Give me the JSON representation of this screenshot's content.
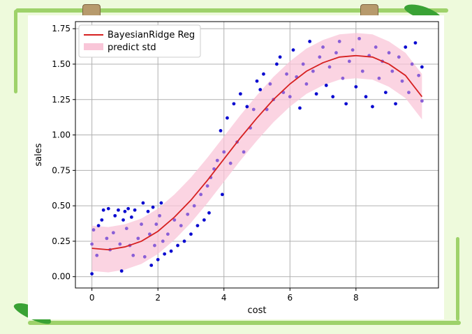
{
  "chart_data": {
    "type": "scatter",
    "xlabel": "cost",
    "ylabel": "sales",
    "xlim": [
      -0.5,
      10.5
    ],
    "ylim": [
      -0.08,
      1.8
    ],
    "xticks": [
      "0",
      "2",
      "4",
      "6",
      "8"
    ],
    "yticks": [
      "0.00",
      "0.25",
      "0.50",
      "0.75",
      "1.00",
      "1.25",
      "1.50",
      "1.75"
    ],
    "grid": true,
    "legend_position": "top-left",
    "legend": [
      "BayesianRidge Reg",
      "predict std"
    ],
    "colors": {
      "line": "#d62020",
      "band": "#f9c6d8",
      "points": "#0a0ad0",
      "overlap_points": "#8a5fd6",
      "frame": "#9ed26a"
    },
    "regression_curve": {
      "name": "BayesianRidge Reg",
      "x": [
        0,
        0.5,
        1,
        1.5,
        2,
        2.5,
        3,
        3.5,
        4,
        4.5,
        5,
        5.5,
        6,
        6.5,
        7,
        7.5,
        8,
        8.5,
        9,
        9.5,
        10
      ],
      "y": [
        0.2,
        0.19,
        0.21,
        0.25,
        0.32,
        0.42,
        0.54,
        0.68,
        0.83,
        0.98,
        1.12,
        1.25,
        1.36,
        1.45,
        1.51,
        1.55,
        1.56,
        1.55,
        1.5,
        1.42,
        1.27
      ]
    },
    "predict_std": {
      "name": "predict std",
      "width": 0.16
    },
    "points": [
      {
        "x": 0.0,
        "y": 0.02
      },
      {
        "x": 0.0,
        "y": 0.23
      },
      {
        "x": 0.05,
        "y": 0.33
      },
      {
        "x": 0.15,
        "y": 0.15
      },
      {
        "x": 0.2,
        "y": 0.36
      },
      {
        "x": 0.3,
        "y": 0.4
      },
      {
        "x": 0.35,
        "y": 0.47
      },
      {
        "x": 0.45,
        "y": 0.27
      },
      {
        "x": 0.5,
        "y": 0.48
      },
      {
        "x": 0.55,
        "y": 0.19
      },
      {
        "x": 0.65,
        "y": 0.31
      },
      {
        "x": 0.7,
        "y": 0.43
      },
      {
        "x": 0.8,
        "y": 0.47
      },
      {
        "x": 0.85,
        "y": 0.23
      },
      {
        "x": 0.9,
        "y": 0.04
      },
      {
        "x": 0.95,
        "y": 0.4
      },
      {
        "x": 1.0,
        "y": 0.46
      },
      {
        "x": 1.05,
        "y": 0.34
      },
      {
        "x": 1.1,
        "y": 0.48
      },
      {
        "x": 1.15,
        "y": 0.22
      },
      {
        "x": 1.2,
        "y": 0.42
      },
      {
        "x": 1.25,
        "y": 0.15
      },
      {
        "x": 1.3,
        "y": 0.47
      },
      {
        "x": 1.4,
        "y": 0.27
      },
      {
        "x": 1.5,
        "y": 0.37
      },
      {
        "x": 1.55,
        "y": 0.52
      },
      {
        "x": 1.6,
        "y": 0.14
      },
      {
        "x": 1.7,
        "y": 0.46
      },
      {
        "x": 1.75,
        "y": 0.3
      },
      {
        "x": 1.8,
        "y": 0.08
      },
      {
        "x": 1.85,
        "y": 0.49
      },
      {
        "x": 1.9,
        "y": 0.22
      },
      {
        "x": 1.95,
        "y": 0.37
      },
      {
        "x": 2.0,
        "y": 0.12
      },
      {
        "x": 2.05,
        "y": 0.43
      },
      {
        "x": 2.1,
        "y": 0.52
      },
      {
        "x": 2.15,
        "y": 0.25
      },
      {
        "x": 2.2,
        "y": 0.16
      },
      {
        "x": 2.3,
        "y": 0.3
      },
      {
        "x": 2.4,
        "y": 0.18
      },
      {
        "x": 2.5,
        "y": 0.4
      },
      {
        "x": 2.6,
        "y": 0.22
      },
      {
        "x": 2.7,
        "y": 0.36
      },
      {
        "x": 2.8,
        "y": 0.25
      },
      {
        "x": 2.9,
        "y": 0.44
      },
      {
        "x": 3.0,
        "y": 0.3
      },
      {
        "x": 3.1,
        "y": 0.5
      },
      {
        "x": 3.2,
        "y": 0.36
      },
      {
        "x": 3.3,
        "y": 0.58
      },
      {
        "x": 3.4,
        "y": 0.4
      },
      {
        "x": 3.5,
        "y": 0.64
      },
      {
        "x": 3.55,
        "y": 0.45
      },
      {
        "x": 3.6,
        "y": 0.7
      },
      {
        "x": 3.7,
        "y": 0.76
      },
      {
        "x": 3.8,
        "y": 0.82
      },
      {
        "x": 3.9,
        "y": 1.03
      },
      {
        "x": 3.95,
        "y": 0.58
      },
      {
        "x": 4.0,
        "y": 0.88
      },
      {
        "x": 4.1,
        "y": 1.12
      },
      {
        "x": 4.2,
        "y": 0.8
      },
      {
        "x": 4.3,
        "y": 1.22
      },
      {
        "x": 4.4,
        "y": 0.95
      },
      {
        "x": 4.5,
        "y": 1.29
      },
      {
        "x": 4.6,
        "y": 0.88
      },
      {
        "x": 4.7,
        "y": 1.2
      },
      {
        "x": 4.8,
        "y": 1.05
      },
      {
        "x": 4.9,
        "y": 1.18
      },
      {
        "x": 5.0,
        "y": 1.38
      },
      {
        "x": 5.1,
        "y": 1.32
      },
      {
        "x": 5.2,
        "y": 1.43
      },
      {
        "x": 5.3,
        "y": 1.18
      },
      {
        "x": 5.4,
        "y": 1.36
      },
      {
        "x": 5.5,
        "y": 1.25
      },
      {
        "x": 5.6,
        "y": 1.5
      },
      {
        "x": 5.7,
        "y": 1.55
      },
      {
        "x": 5.8,
        "y": 1.3
      },
      {
        "x": 5.9,
        "y": 1.43
      },
      {
        "x": 6.0,
        "y": 1.27
      },
      {
        "x": 6.1,
        "y": 1.6
      },
      {
        "x": 6.2,
        "y": 1.41
      },
      {
        "x": 6.3,
        "y": 1.19
      },
      {
        "x": 6.4,
        "y": 1.5
      },
      {
        "x": 6.5,
        "y": 1.36
      },
      {
        "x": 6.6,
        "y": 1.66
      },
      {
        "x": 6.7,
        "y": 1.45
      },
      {
        "x": 6.8,
        "y": 1.29
      },
      {
        "x": 6.9,
        "y": 1.55
      },
      {
        "x": 7.0,
        "y": 1.62
      },
      {
        "x": 7.1,
        "y": 1.35
      },
      {
        "x": 7.2,
        "y": 1.48
      },
      {
        "x": 7.3,
        "y": 1.27
      },
      {
        "x": 7.4,
        "y": 1.58
      },
      {
        "x": 7.5,
        "y": 1.66
      },
      {
        "x": 7.6,
        "y": 1.4
      },
      {
        "x": 7.7,
        "y": 1.22
      },
      {
        "x": 7.8,
        "y": 1.52
      },
      {
        "x": 7.9,
        "y": 1.6
      },
      {
        "x": 8.0,
        "y": 1.34
      },
      {
        "x": 8.1,
        "y": 1.68
      },
      {
        "x": 8.2,
        "y": 1.45
      },
      {
        "x": 8.3,
        "y": 1.27
      },
      {
        "x": 8.4,
        "y": 1.56
      },
      {
        "x": 8.5,
        "y": 1.2
      },
      {
        "x": 8.6,
        "y": 1.62
      },
      {
        "x": 8.7,
        "y": 1.4
      },
      {
        "x": 8.8,
        "y": 1.52
      },
      {
        "x": 8.9,
        "y": 1.3
      },
      {
        "x": 9.0,
        "y": 1.58
      },
      {
        "x": 9.1,
        "y": 1.45
      },
      {
        "x": 9.2,
        "y": 1.22
      },
      {
        "x": 9.3,
        "y": 1.55
      },
      {
        "x": 9.4,
        "y": 1.38
      },
      {
        "x": 9.5,
        "y": 1.62
      },
      {
        "x": 9.6,
        "y": 1.3
      },
      {
        "x": 9.7,
        "y": 1.5
      },
      {
        "x": 9.8,
        "y": 1.65
      },
      {
        "x": 9.9,
        "y": 1.42
      },
      {
        "x": 10.0,
        "y": 1.24
      },
      {
        "x": 10.0,
        "y": 1.48
      }
    ]
  }
}
